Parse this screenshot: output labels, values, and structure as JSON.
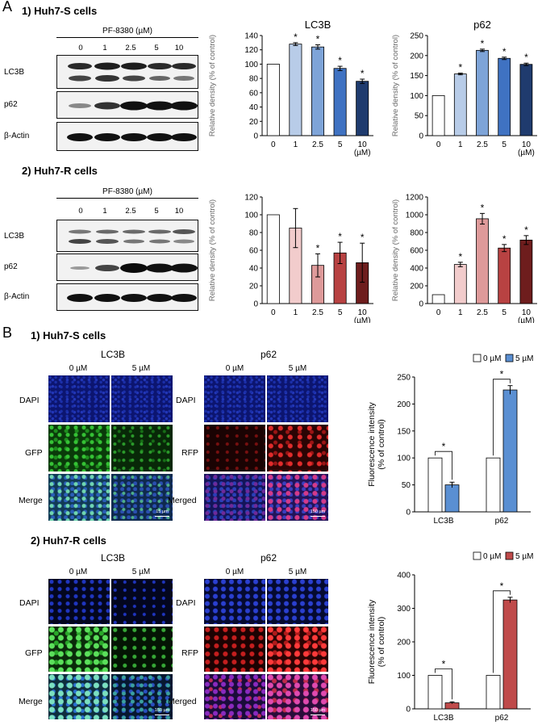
{
  "panel_a": {
    "letter": "A",
    "section1_title": "1) Huh7-S cells",
    "section2_title": "2) Huh7-R cells",
    "treatment_label": "PF-8380 (µM)",
    "lanes": [
      "0",
      "1",
      "2.5",
      "5",
      "10"
    ],
    "blot_labels": [
      "LC3B",
      "p62",
      "β-Actin"
    ]
  },
  "panel_b": {
    "letter": "B",
    "section1_title": "1) Huh7-S cells",
    "section2_title": "2) Huh7-R cells",
    "lc3b_head": "LC3B",
    "p62_head": "p62",
    "dose_0": "0 µM",
    "dose_5": "5 µM",
    "lc3b_rows": [
      "DAPI",
      "GFP",
      "Merge"
    ],
    "p62_rows": [
      "DAPI",
      "RFP",
      "Merged"
    ],
    "scalebar_s_lc3b": "15 µm",
    "scalebar_s_p62": "150 µm",
    "scalebar_r_lc3b": "150 µm",
    "scalebar_r_p62": "150 µm"
  },
  "chart_data": [
    {
      "type": "bar",
      "title": "LC3B",
      "ylabel": "Relative density (% of control)",
      "categories": [
        "0",
        "1",
        "2.5",
        "5",
        "10 (µM)"
      ],
      "values": [
        100,
        128,
        124,
        94,
        76
      ],
      "errors": [
        0,
        2,
        3,
        3,
        3
      ],
      "significance": [
        "",
        "*",
        "*",
        "*",
        "*"
      ],
      "ylim": [
        0,
        140
      ],
      "yticks": [
        0,
        20,
        40,
        60,
        80,
        100,
        120,
        140
      ],
      "colors": [
        "#ffffff",
        "#b8cce8",
        "#7ea4d8",
        "#3f72c2",
        "#1f3b6e"
      ]
    },
    {
      "type": "bar",
      "title": "p62",
      "ylabel": "Relative density (% of control)",
      "categories": [
        "0",
        "1",
        "2.5",
        "5",
        "10 (µM)"
      ],
      "values": [
        100,
        154,
        213,
        193,
        178
      ],
      "errors": [
        0,
        2,
        3,
        3,
        3
      ],
      "significance": [
        "",
        "*",
        "*",
        "*",
        "*"
      ],
      "ylim": [
        0,
        250
      ],
      "yticks": [
        0,
        50,
        100,
        150,
        200,
        250
      ],
      "colors": [
        "#ffffff",
        "#b8cce8",
        "#7ea4d8",
        "#3f72c2",
        "#1f3b6e"
      ]
    },
    {
      "type": "bar",
      "title": "",
      "ylabel": "Relative density (% of control)",
      "categories": [
        "0",
        "1",
        "2.5",
        "5",
        "10 (µM)"
      ],
      "values": [
        100,
        85,
        43,
        57,
        46
      ],
      "errors": [
        0,
        22,
        13,
        12,
        22
      ],
      "significance": [
        "",
        "",
        "*",
        "*",
        "*"
      ],
      "ylim": [
        0,
        120
      ],
      "yticks": [
        0,
        20,
        40,
        60,
        80,
        100,
        120
      ],
      "colors": [
        "#ffffff",
        "#f2cccc",
        "#de9a9a",
        "#b84242",
        "#6e1d1d"
      ]
    },
    {
      "type": "bar",
      "title": "",
      "ylabel": "Relative density (% of control)",
      "categories": [
        "0",
        "1",
        "2.5",
        "5",
        "10 (µM)"
      ],
      "values": [
        100,
        440,
        955,
        625,
        715
      ],
      "errors": [
        0,
        25,
        60,
        40,
        50
      ],
      "significance": [
        "",
        "*",
        "*",
        "*",
        "*"
      ],
      "ylim": [
        0,
        1200
      ],
      "yticks": [
        0,
        200,
        400,
        600,
        800,
        1000,
        1200
      ],
      "colors": [
        "#ffffff",
        "#f2cccc",
        "#de9a9a",
        "#b84242",
        "#6e1d1d"
      ]
    },
    {
      "type": "bar",
      "title": "",
      "ylabel": "Fluorescence intensity (% of control)",
      "categories": [
        "LC3B",
        "p62"
      ],
      "series": [
        {
          "name": "0 µM",
          "values": [
            100,
            100
          ],
          "errors": [
            0,
            0
          ],
          "color": "#ffffff"
        },
        {
          "name": "5 µM",
          "values": [
            50,
            226
          ],
          "errors": [
            5,
            8
          ],
          "color": "#5a8fd2"
        }
      ],
      "significance": [
        "*",
        "*"
      ],
      "ylim": [
        0,
        250
      ],
      "yticks": [
        0,
        50,
        100,
        150,
        200,
        250
      ],
      "legend": "top"
    },
    {
      "type": "bar",
      "title": "",
      "ylabel": "Fluorescence intensity (% of control)",
      "categories": [
        "LC3B",
        "p62"
      ],
      "series": [
        {
          "name": "0 µM",
          "values": [
            100,
            100
          ],
          "errors": [
            0,
            0
          ],
          "color": "#ffffff"
        },
        {
          "name": "5 µM",
          "values": [
            18,
            325
          ],
          "errors": [
            3,
            8
          ],
          "color": "#bf4a4a"
        }
      ],
      "significance": [
        "*",
        "*"
      ],
      "ylim": [
        0,
        400
      ],
      "yticks": [
        0,
        100,
        200,
        300,
        400
      ],
      "legend": "top"
    }
  ]
}
